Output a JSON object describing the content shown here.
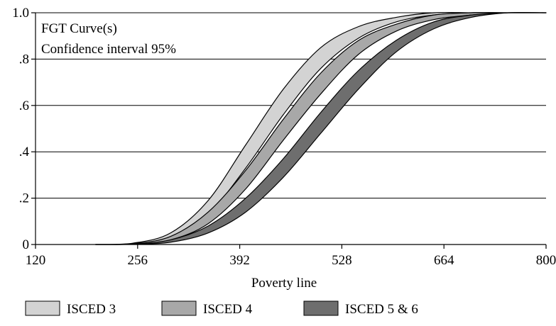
{
  "chart_data": {
    "type": "area",
    "title": "FGT Curve(s)",
    "subtitle": "Confidence interval 95%",
    "xlabel": "Poverty line",
    "ylabel": "",
    "xlim": [
      120,
      800
    ],
    "ylim": [
      0,
      1
    ],
    "x_ticks": [
      120,
      256,
      392,
      528,
      664,
      800
    ],
    "y_ticks": [
      0,
      0.2,
      0.4,
      0.6,
      0.8,
      1.0
    ],
    "y_tick_labels": [
      "0",
      ".2",
      ".4",
      ".6",
      ".8",
      "1.0"
    ],
    "grid": "horizontal",
    "legend_position": "bottom",
    "x": [
      200,
      250,
      300,
      350,
      400,
      450,
      500,
      550,
      600,
      650,
      700,
      750,
      800
    ],
    "series": [
      {
        "name": "ISCED 3",
        "color": "#d3d3d3",
        "lower": [
          0.0,
          0.003,
          0.03,
          0.13,
          0.33,
          0.56,
          0.76,
          0.89,
          0.96,
          0.99,
          1.0,
          1.0,
          1.0
        ],
        "upper": [
          0.0,
          0.006,
          0.05,
          0.19,
          0.43,
          0.67,
          0.85,
          0.94,
          0.98,
          1.0,
          1.0,
          1.0,
          1.0
        ]
      },
      {
        "name": "ISCED 4",
        "color": "#a8a8a8",
        "lower": [
          0.0,
          0.002,
          0.02,
          0.09,
          0.24,
          0.45,
          0.65,
          0.82,
          0.92,
          0.97,
          0.99,
          1.0,
          1.0
        ],
        "upper": [
          0.0,
          0.004,
          0.035,
          0.14,
          0.32,
          0.54,
          0.74,
          0.88,
          0.95,
          0.99,
          1.0,
          1.0,
          1.0
        ]
      },
      {
        "name": "ISCED 5 & 6",
        "color": "#6e6e6e",
        "lower": [
          0.0,
          0.001,
          0.01,
          0.05,
          0.14,
          0.29,
          0.48,
          0.67,
          0.83,
          0.93,
          0.98,
          1.0,
          1.0
        ],
        "upper": [
          0.0,
          0.002,
          0.02,
          0.08,
          0.2,
          0.37,
          0.57,
          0.75,
          0.88,
          0.96,
          0.99,
          1.0,
          1.0
        ]
      }
    ]
  }
}
